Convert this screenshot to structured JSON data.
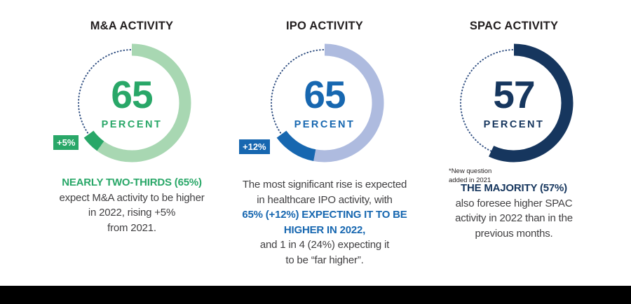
{
  "page": {
    "background_color": "#ffffff",
    "footer_bar_color": "#000000",
    "body_text_color": "#414042",
    "title_text_color": "#221e1f"
  },
  "chart_data": [
    {
      "type": "donut",
      "title": "M&A ACTIVITY",
      "value": 65,
      "value_label": "65",
      "unit_label": "PERCENT",
      "delta": 5,
      "delta_label": "+5%",
      "accent_color": "#29a768",
      "start_angle": "top",
      "direction": "clockwise",
      "segments": [
        {
          "name": "base-expectation",
          "value": 60,
          "color": "#a8d7b2"
        },
        {
          "name": "increase-vs-2021",
          "value": 5,
          "color": "#29a768"
        },
        {
          "name": "remainder",
          "value": 35,
          "style": "dotted",
          "color": "#2e4d80"
        }
      ],
      "description_lines": [
        {
          "text": "NEARLY TWO-THIRDS (65%)",
          "em": true
        },
        {
          "text": "expect M&A activity to be higher",
          "em": false
        },
        {
          "text": "in 2022, rising +5%",
          "em": false
        },
        {
          "text": "from 2021.",
          "em": false
        }
      ]
    },
    {
      "type": "donut",
      "title": "IPO ACTIVITY",
      "value": 65,
      "value_label": "65",
      "unit_label": "PERCENT",
      "delta": 12,
      "delta_label": "+12%",
      "accent_color": "#1767b0",
      "start_angle": "top",
      "direction": "clockwise",
      "segments": [
        {
          "name": "base-expectation",
          "value": 53,
          "color": "#aebbdf"
        },
        {
          "name": "increase-vs-2021",
          "value": 12,
          "color": "#1767b0"
        },
        {
          "name": "remainder",
          "value": 35,
          "style": "dotted",
          "color": "#2e4d80"
        }
      ],
      "description_lines": [
        {
          "text": "The most significant rise is expected",
          "em": false
        },
        {
          "text": "in healthcare IPO activity, with",
          "em": false
        },
        {
          "text": "65% (+12%) EXPECTING IT TO BE",
          "em": true
        },
        {
          "text": "HIGHER IN 2022,",
          "em": true
        },
        {
          "text": "and 1 in 4 (24%) expecting it",
          "em": false
        },
        {
          "text": "to be “far higher”.",
          "em": false
        }
      ]
    },
    {
      "type": "donut",
      "title": "SPAC ACTIVITY",
      "value": 57,
      "value_label": "57",
      "unit_label": "PERCENT",
      "delta": null,
      "delta_label": null,
      "accent_color": "#16365e",
      "start_angle": "top",
      "direction": "clockwise",
      "note_lines": [
        "*New question",
        "added in 2021"
      ],
      "segments": [
        {
          "name": "expect-higher",
          "value": 57,
          "color": "#16365e"
        },
        {
          "name": "remainder",
          "value": 43,
          "style": "dotted",
          "color": "#2e4d80"
        }
      ],
      "description_lines": [
        {
          "text": "THE MAJORITY (57%)",
          "em": true
        },
        {
          "text": "also foresee higher SPAC",
          "em": false
        },
        {
          "text": "activity in 2022 than in the",
          "em": false
        },
        {
          "text": "previous months.",
          "em": false
        }
      ]
    }
  ]
}
